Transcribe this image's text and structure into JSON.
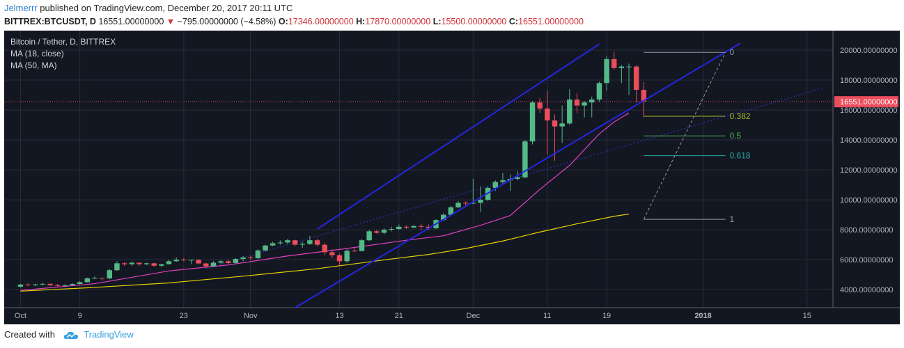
{
  "header": {
    "author": "Jelmerrr",
    "published": "published on TradingView.com, December 20, 2017 20:11 UTC",
    "symbol": "BITTREX:BTCUSDT, D",
    "last": "16551.00000000",
    "change_arrow": "▼",
    "change": "−795.00000000 (−4.58%)",
    "open_label": "O:",
    "open": "17346.00000000",
    "high_label": "H:",
    "high": "17870.00000000",
    "low_label": "L:",
    "low": "15500.00000000",
    "close_label": "C:",
    "close": "16551.00000000"
  },
  "footer": {
    "created_with": "Created with",
    "brand": "TradingView",
    "logo_icon": "tradingview-cloud-icon"
  },
  "colors": {
    "background": "#131722",
    "grid": "#2a2e39",
    "bull": "#53b987",
    "bear": "#eb4d5c",
    "ma18": "#e040c0",
    "ma50": "#e6d200",
    "channel": "#2525e0",
    "price_line": "#eb4d5c"
  },
  "chart_data": {
    "type": "candlestick",
    "title": "Bitcoin / Tether, D, BITTREX",
    "legend": [
      "MA (18, close)",
      "MA (50, MA)"
    ],
    "y_ticks": [
      "20000.00000000",
      "18000.00000000",
      "16000.00000000",
      "14000.00000000",
      "12000.00000000",
      "10000.00000000",
      "8000.00000000",
      "6000.00000000",
      "4000.00000000"
    ],
    "y_tick_values": [
      20000,
      18000,
      16000,
      14000,
      12000,
      10000,
      8000,
      6000,
      4000
    ],
    "ylim": [
      2800,
      21300
    ],
    "last_price_label": "16551.00000000",
    "last_price": 16551,
    "x_ticks": [
      {
        "label": "Oct",
        "day": 0
      },
      {
        "label": "9",
        "day": 8
      },
      {
        "label": "23",
        "day": 22
      },
      {
        "label": "Nov",
        "day": 31
      },
      {
        "label": "13",
        "day": 43
      },
      {
        "label": "21",
        "day": 51
      },
      {
        "label": "Dec",
        "day": 61
      },
      {
        "label": "11",
        "day": 71
      },
      {
        "label": "19",
        "day": 79
      },
      {
        "label": "2018",
        "day": 92
      },
      {
        "label": "15",
        "day": 106
      }
    ],
    "xlim": [
      -2.2,
      109.5
    ],
    "candles": [
      [
        4200,
        4380,
        4150,
        4340
      ],
      [
        4340,
        4420,
        4250,
        4300
      ],
      [
        4300,
        4400,
        4230,
        4350
      ],
      [
        4350,
        4450,
        4280,
        4390
      ],
      [
        4390,
        4400,
        4250,
        4300
      ],
      [
        4300,
        4380,
        4200,
        4250
      ],
      [
        4250,
        4350,
        4180,
        4300
      ],
      [
        4300,
        4420,
        4260,
        4380
      ],
      [
        4380,
        4560,
        4350,
        4500
      ],
      [
        4500,
        4800,
        4480,
        4760
      ],
      [
        4760,
        4880,
        4700,
        4780
      ],
      [
        4780,
        4800,
        4600,
        4750
      ],
      [
        4750,
        5400,
        4700,
        5300
      ],
      [
        5300,
        5900,
        5250,
        5760
      ],
      [
        5760,
        5850,
        5600,
        5700
      ],
      [
        5700,
        5880,
        5600,
        5800
      ],
      [
        5800,
        5820,
        5600,
        5700
      ],
      [
        5700,
        5800,
        5650,
        5760
      ],
      [
        5760,
        5790,
        5520,
        5600
      ],
      [
        5600,
        5720,
        5500,
        5700
      ],
      [
        5700,
        5990,
        5680,
        5900
      ],
      [
        5900,
        6150,
        5850,
        6000
      ],
      [
        6000,
        6100,
        5900,
        5980
      ],
      [
        5980,
        6000,
        5700,
        5990
      ],
      [
        5990,
        6050,
        5700,
        5750
      ],
      [
        5750,
        5800,
        5450,
        5560
      ],
      [
        5560,
        5900,
        5500,
        5800
      ],
      [
        5800,
        5980,
        5700,
        5900
      ],
      [
        5900,
        6020,
        5700,
        5780
      ],
      [
        5780,
        6100,
        5750,
        6050
      ],
      [
        6050,
        6250,
        5900,
        6150
      ],
      [
        6150,
        6250,
        6000,
        6100
      ],
      [
        6100,
        6700,
        6050,
        6620
      ],
      [
        6620,
        7000,
        6550,
        6950
      ],
      [
        6950,
        7200,
        6900,
        7100
      ],
      [
        7100,
        7300,
        7000,
        7150
      ],
      [
        7150,
        7400,
        7050,
        7300
      ],
      [
        7300,
        7350,
        6900,
        7000
      ],
      [
        7000,
        7200,
        6800,
        7050
      ],
      [
        7050,
        7600,
        7000,
        7300
      ],
      [
        7300,
        7400,
        6900,
        7000
      ],
      [
        7000,
        7100,
        6300,
        6500
      ],
      [
        6500,
        6700,
        6100,
        6300
      ],
      [
        6300,
        6400,
        5600,
        5900
      ],
      [
        5900,
        6700,
        5800,
        6600
      ],
      [
        6600,
        6800,
        6500,
        6580
      ],
      [
        6580,
        7400,
        6550,
        7300
      ],
      [
        7300,
        8000,
        7250,
        7900
      ],
      [
        7900,
        8000,
        7750,
        7800
      ],
      [
        7800,
        8100,
        7700,
        8000
      ],
      [
        8000,
        8200,
        7900,
        8050
      ],
      [
        8050,
        8350,
        8000,
        8200
      ],
      [
        8200,
        8300,
        8050,
        8150
      ],
      [
        8150,
        8300,
        8100,
        8250
      ],
      [
        8250,
        8400,
        8000,
        8200
      ],
      [
        8200,
        8350,
        8000,
        8100
      ],
      [
        8100,
        8700,
        8050,
        8650
      ],
      [
        8650,
        9100,
        8600,
        9000
      ],
      [
        9000,
        9600,
        8950,
        9500
      ],
      [
        9500,
        9900,
        9450,
        9800
      ],
      [
        9800,
        9900,
        9500,
        9750
      ],
      [
        9750,
        11400,
        9700,
        9800
      ],
      [
        9800,
        10900,
        9200,
        10000
      ],
      [
        10000,
        10900,
        9900,
        10800
      ],
      [
        10800,
        11300,
        10600,
        11200
      ],
      [
        11200,
        11800,
        11000,
        11300
      ],
      [
        11300,
        11700,
        10600,
        11400
      ],
      [
        11400,
        11900,
        11300,
        11500
      ],
      [
        11500,
        14000,
        11450,
        13900
      ],
      [
        13900,
        16600,
        13700,
        16500
      ],
      [
        16500,
        16800,
        15800,
        16100
      ],
      [
        16100,
        17300,
        13000,
        15300
      ],
      [
        15300,
        15700,
        12600,
        14900
      ],
      [
        14900,
        16300,
        13800,
        15100
      ],
      [
        15100,
        17400,
        15000,
        16700
      ],
      [
        16700,
        17100,
        15800,
        16300
      ],
      [
        16300,
        16600,
        15500,
        16500
      ],
      [
        16500,
        16900,
        15500,
        16700
      ],
      [
        16700,
        17900,
        16550,
        17800
      ],
      [
        17800,
        19600,
        17300,
        19400
      ],
      [
        19400,
        19900,
        18700,
        18800
      ],
      [
        18800,
        19000,
        17800,
        18900
      ],
      [
        18900,
        19100,
        17000,
        18900
      ],
      [
        18900,
        19000,
        16500,
        17346
      ],
      [
        17346,
        17870,
        15500,
        16551
      ]
    ],
    "ma18": [
      [
        0,
        3950
      ],
      [
        10,
        4400
      ],
      [
        20,
        5250
      ],
      [
        28,
        5650
      ],
      [
        36,
        6250
      ],
      [
        44,
        6750
      ],
      [
        52,
        7300
      ],
      [
        57,
        7600
      ],
      [
        62,
        8300
      ],
      [
        66,
        8950
      ],
      [
        70,
        10700
      ],
      [
        74,
        12300
      ],
      [
        78,
        14400
      ],
      [
        80,
        15200
      ],
      [
        82,
        15800
      ]
    ],
    "ma50": [
      [
        0,
        3900
      ],
      [
        10,
        4150
      ],
      [
        20,
        4450
      ],
      [
        30,
        4900
      ],
      [
        40,
        5400
      ],
      [
        50,
        6050
      ],
      [
        55,
        6350
      ],
      [
        60,
        6750
      ],
      [
        65,
        7250
      ],
      [
        70,
        7850
      ],
      [
        75,
        8400
      ],
      [
        80,
        8900
      ],
      [
        82,
        9050
      ]
    ],
    "channel_upper": [
      [
        40,
        8050
      ],
      [
        78,
        20400
      ]
    ],
    "channel_lower": [
      [
        37,
        2800
      ],
      [
        97,
        20450
      ]
    ],
    "dotted_trend": [
      [
        25,
        5400
      ],
      [
        108,
        17450
      ]
    ],
    "fib_levels": [
      {
        "label": "0",
        "price": 19850,
        "color": "#9598a1"
      },
      {
        "label": "0.382",
        "price": 15580,
        "color": "#a7b92b"
      },
      {
        "label": "0.5",
        "price": 14270,
        "color": "#4caf50"
      },
      {
        "label": "0.618",
        "price": 12950,
        "color": "#26a69a"
      },
      {
        "label": "1",
        "price": 8700,
        "color": "#9598a1"
      }
    ],
    "fib_x_range": [
      84,
      95
    ],
    "fib_trend_line": [
      [
        84,
        8700
      ],
      [
        95,
        19850
      ]
    ]
  }
}
